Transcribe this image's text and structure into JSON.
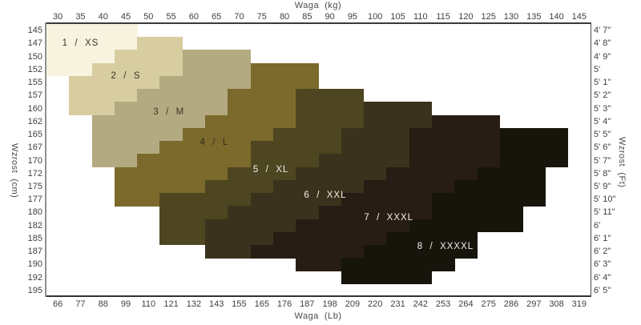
{
  "axes": {
    "title_top": "Waga  (kg)",
    "title_bottom": "Waga  (Lb)",
    "title_left": "Wzrost  (cm)",
    "title_right": "Wzrost  (Ft)"
  },
  "chart_data": {
    "type": "heatmap",
    "title": "Size chart: weight vs height with size regions",
    "x_top_kg": [
      30,
      35,
      40,
      45,
      50,
      55,
      60,
      65,
      70,
      75,
      80,
      85,
      90,
      95,
      100,
      105,
      110,
      115,
      120,
      125,
      130,
      135,
      140,
      145
    ],
    "x_bottom_lb": [
      66,
      77,
      88,
      99,
      110,
      121,
      132,
      143,
      155,
      165,
      176,
      187,
      198,
      209,
      220,
      231,
      242,
      253,
      264,
      275,
      286,
      297,
      308,
      319
    ],
    "y_left_cm": [
      145,
      147,
      150,
      152,
      155,
      157,
      160,
      162,
      165,
      167,
      170,
      172,
      175,
      177,
      180,
      182,
      185,
      187,
      190,
      192,
      195
    ],
    "y_right_ft": [
      "4' 7\"",
      "4' 8\"",
      "4' 9\"",
      "5'",
      "5' 1\"",
      "5' 2\"",
      "5' 3\"",
      "5' 4\"",
      "5' 5\"",
      "5' 6\"",
      "5' 7\"",
      "5' 8\"",
      "5' 9\"",
      "5' 10\"",
      "5' 11\"",
      "6'",
      "6' 1\"",
      "6' 2\"",
      "6' 3\"",
      "6' 4\"",
      "6' 5\""
    ],
    "grid": {
      "cols": 24,
      "rows": 21
    },
    "legend_position": "labels-inside-regions",
    "sizes": [
      {
        "id": 1,
        "label": "1  /  XS",
        "color": "#f8f3df",
        "label_color": "#3b3627",
        "label_col": 1.0,
        "label_row": 1.0
      },
      {
        "id": 2,
        "label": "2  /  S",
        "color": "#d7cda1",
        "label_color": "#3b3627",
        "label_col": 3.0,
        "label_row": 3.5
      },
      {
        "id": 3,
        "label": "3  /  M",
        "color": "#b3aa81",
        "label_color": "#3b3627",
        "label_col": 4.9,
        "label_row": 6.3
      },
      {
        "id": 4,
        "label": "4  /  L",
        "color": "#7b6a2b",
        "label_color": "#2e2916",
        "label_col": 6.9,
        "label_row": 8.6
      },
      {
        "id": 5,
        "label": "5  /  XL",
        "color": "#4e4521",
        "label_color": "#f2f0e8",
        "label_col": 9.4,
        "label_row": 10.7
      },
      {
        "id": 6,
        "label": "6  /  XXL",
        "color": "#3a321c",
        "label_color": "#f2f0e8",
        "label_col": 11.8,
        "label_row": 12.7
      },
      {
        "id": 7,
        "label": "7  /  XXXL",
        "color": "#271d14",
        "label_color": "#f2f0e8",
        "label_col": 14.6,
        "label_row": 14.4
      },
      {
        "id": 8,
        "label": "8  /  XXXXL",
        "color": "#17140b",
        "label_color": "#f2f0e8",
        "label_col": 17.1,
        "label_row": 16.6
      }
    ],
    "row_segments_size_startcol_endcol": [
      [
        [
          1,
          0,
          3
        ]
      ],
      [
        [
          1,
          0,
          3
        ],
        [
          2,
          4,
          5
        ]
      ],
      [
        [
          1,
          0,
          2
        ],
        [
          2,
          3,
          5
        ],
        [
          3,
          6,
          8
        ]
      ],
      [
        [
          1,
          0,
          1
        ],
        [
          2,
          2,
          5
        ],
        [
          3,
          6,
          8
        ],
        [
          4,
          9,
          11
        ]
      ],
      [
        [
          2,
          1,
          4
        ],
        [
          3,
          5,
          8
        ],
        [
          4,
          9,
          11
        ]
      ],
      [
        [
          2,
          1,
          3
        ],
        [
          3,
          4,
          7
        ],
        [
          4,
          8,
          10
        ],
        [
          5,
          11,
          13
        ]
      ],
      [
        [
          2,
          1,
          2
        ],
        [
          3,
          3,
          7
        ],
        [
          4,
          8,
          10
        ],
        [
          5,
          11,
          13
        ],
        [
          6,
          14,
          16
        ]
      ],
      [
        [
          3,
          2,
          6
        ],
        [
          4,
          7,
          10
        ],
        [
          5,
          11,
          13
        ],
        [
          6,
          14,
          16
        ],
        [
          7,
          17,
          19
        ]
      ],
      [
        [
          3,
          2,
          5
        ],
        [
          4,
          6,
          9
        ],
        [
          5,
          10,
          12
        ],
        [
          6,
          13,
          15
        ],
        [
          7,
          16,
          19
        ],
        [
          8,
          20,
          22
        ]
      ],
      [
        [
          3,
          2,
          4
        ],
        [
          4,
          5,
          8
        ],
        [
          5,
          9,
          12
        ],
        [
          6,
          13,
          15
        ],
        [
          7,
          16,
          19
        ],
        [
          8,
          20,
          22
        ]
      ],
      [
        [
          3,
          2,
          3
        ],
        [
          4,
          4,
          8
        ],
        [
          5,
          9,
          11
        ],
        [
          6,
          12,
          15
        ],
        [
          7,
          16,
          19
        ],
        [
          8,
          20,
          22
        ]
      ],
      [
        [
          4,
          3,
          7
        ],
        [
          5,
          8,
          10
        ],
        [
          6,
          11,
          14
        ],
        [
          7,
          15,
          18
        ],
        [
          8,
          19,
          21
        ]
      ],
      [
        [
          4,
          3,
          6
        ],
        [
          5,
          7,
          9
        ],
        [
          6,
          10,
          13
        ],
        [
          7,
          14,
          17
        ],
        [
          8,
          18,
          21
        ]
      ],
      [
        [
          4,
          3,
          4
        ],
        [
          5,
          5,
          8
        ],
        [
          6,
          9,
          12
        ],
        [
          7,
          13,
          16
        ],
        [
          8,
          17,
          21
        ]
      ],
      [
        [
          5,
          5,
          7
        ],
        [
          6,
          8,
          11
        ],
        [
          7,
          12,
          16
        ],
        [
          8,
          17,
          20
        ]
      ],
      [
        [
          5,
          5,
          6
        ],
        [
          6,
          7,
          10
        ],
        [
          7,
          11,
          15
        ],
        [
          8,
          16,
          20
        ]
      ],
      [
        [
          5,
          5,
          6
        ],
        [
          6,
          7,
          9
        ],
        [
          7,
          10,
          14
        ],
        [
          8,
          15,
          18
        ]
      ],
      [
        [
          6,
          7,
          8
        ],
        [
          7,
          9,
          13
        ],
        [
          8,
          14,
          18
        ]
      ],
      [
        [
          7,
          11,
          12
        ],
        [
          8,
          13,
          17
        ]
      ],
      [
        [
          8,
          13,
          16
        ]
      ],
      []
    ]
  },
  "layout_colors": {
    "axis_dark": "#3a3a3a",
    "axis_gray": "#909090",
    "tick_text": "#3f3f3f"
  }
}
